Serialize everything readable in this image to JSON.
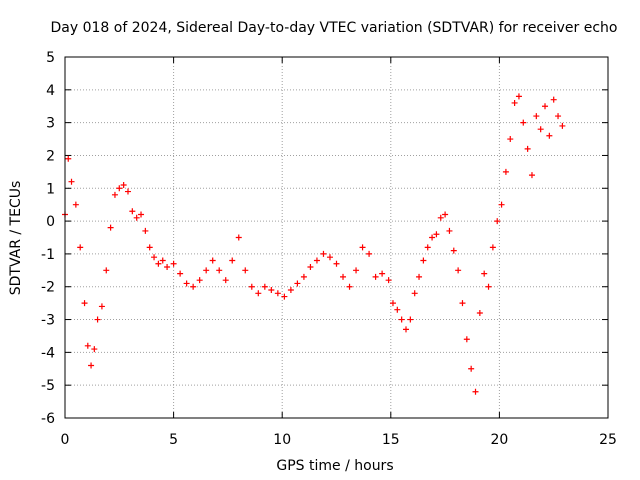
{
  "chart_data": {
    "type": "scatter",
    "title": "Day 018 of 2024, Sidereal Day-to-day VTEC variation (SDTVAR) for receiver echo",
    "xlabel": "GPS time / hours",
    "ylabel": "SDTVAR / TECUs",
    "xlim": [
      0,
      25
    ],
    "ylim": [
      -6,
      5
    ],
    "x_ticks": [
      "0",
      "5",
      "10",
      "15",
      "20",
      "25"
    ],
    "y_ticks": [
      "5",
      "4",
      "3",
      "2",
      "1",
      "0",
      "-1",
      "-2",
      "-3",
      "-4",
      "-5",
      "-6"
    ],
    "grid": true,
    "marker": "+",
    "series": [
      {
        "name": "SDTVAR",
        "color": "#ff0000",
        "x": [
          0.0,
          0.15,
          0.3,
          0.5,
          0.7,
          0.9,
          1.05,
          1.2,
          1.35,
          1.5,
          1.7,
          1.9,
          2.1,
          2.3,
          2.5,
          2.7,
          2.9,
          3.1,
          3.3,
          3.5,
          3.7,
          3.9,
          4.1,
          4.3,
          4.5,
          4.7,
          5.0,
          5.3,
          5.6,
          5.9,
          6.2,
          6.5,
          6.8,
          7.1,
          7.4,
          7.7,
          8.0,
          8.3,
          8.6,
          8.9,
          9.2,
          9.5,
          9.8,
          10.1,
          10.4,
          10.7,
          11.0,
          11.3,
          11.6,
          11.9,
          12.2,
          12.5,
          12.8,
          13.1,
          13.4,
          13.7,
          14.0,
          14.3,
          14.6,
          14.9,
          15.1,
          15.3,
          15.5,
          15.7,
          15.9,
          16.1,
          16.3,
          16.5,
          16.7,
          16.9,
          17.1,
          17.3,
          17.5,
          17.7,
          17.9,
          18.1,
          18.3,
          18.5,
          18.7,
          18.9,
          19.1,
          19.3,
          19.5,
          19.7,
          19.9,
          20.1,
          20.3,
          20.5,
          20.7,
          20.9,
          21.1,
          21.3,
          21.5,
          21.7,
          21.9,
          22.1,
          22.3,
          22.5,
          22.7,
          22.9
        ],
        "y": [
          0.2,
          1.9,
          1.2,
          0.5,
          -0.8,
          -2.5,
          -3.8,
          -4.4,
          -3.9,
          -3.0,
          -2.6,
          -1.5,
          -0.2,
          0.8,
          1.0,
          1.1,
          0.9,
          0.3,
          0.1,
          0.2,
          -0.3,
          -0.8,
          -1.1,
          -1.3,
          -1.2,
          -1.4,
          -1.3,
          -1.6,
          -1.9,
          -2.0,
          -1.8,
          -1.5,
          -1.2,
          -1.5,
          -1.8,
          -1.2,
          -0.5,
          -1.5,
          -2.0,
          -2.2,
          -2.0,
          -2.1,
          -2.2,
          -2.3,
          -2.1,
          -1.9,
          -1.7,
          -1.4,
          -1.2,
          -1.0,
          -1.1,
          -1.3,
          -1.7,
          -2.0,
          -1.5,
          -0.8,
          -1.0,
          -1.7,
          -1.6,
          -1.8,
          -2.5,
          -2.7,
          -3.0,
          -3.3,
          -3.0,
          -2.2,
          -1.7,
          -1.2,
          -0.8,
          -0.5,
          -0.4,
          0.1,
          0.2,
          -0.3,
          -0.9,
          -1.5,
          -2.5,
          -3.6,
          -4.5,
          -5.2,
          -2.8,
          -1.6,
          -2.0,
          -0.8,
          0.0,
          0.5,
          1.5,
          2.5,
          3.6,
          3.8,
          3.0,
          2.2,
          1.4,
          3.2,
          2.8,
          3.5,
          2.6,
          3.7,
          3.2,
          2.9
        ]
      }
    ]
  }
}
